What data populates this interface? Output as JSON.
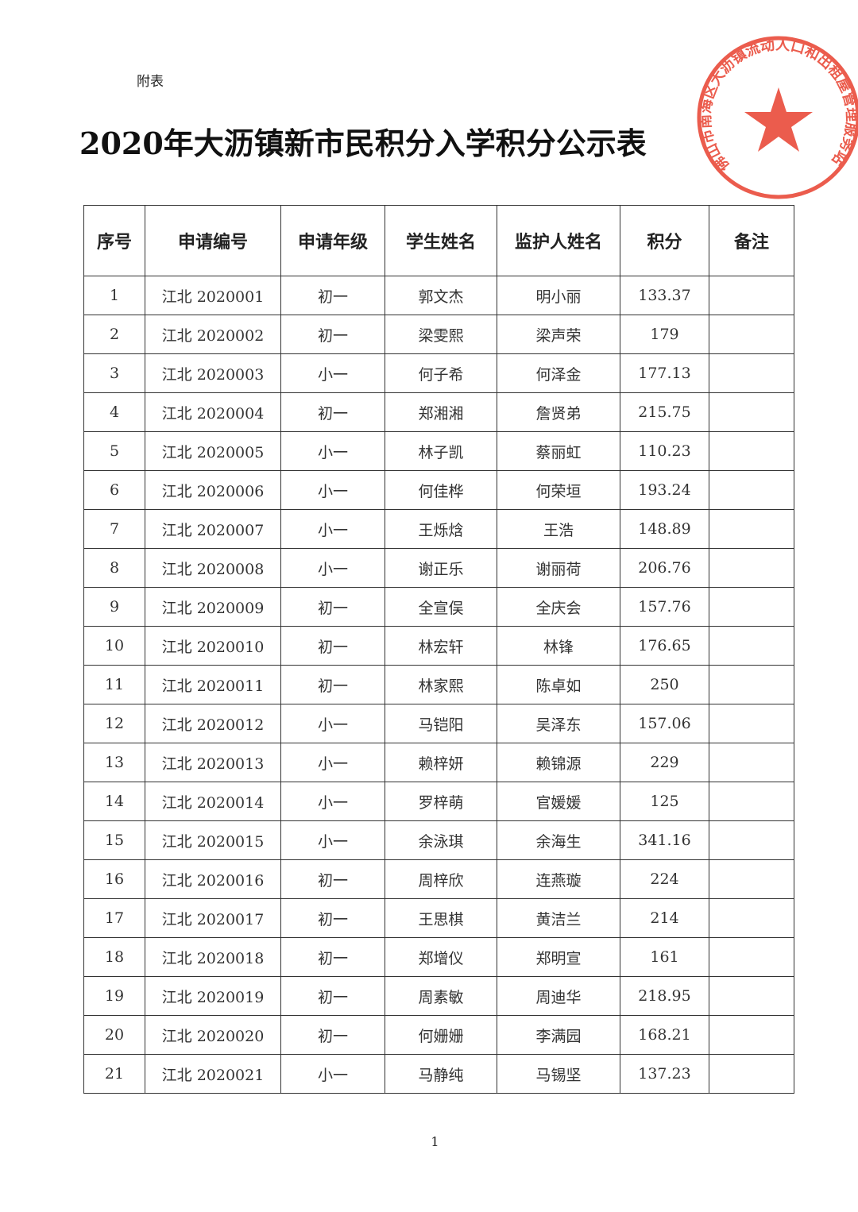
{
  "attachment_label": "附表",
  "title": "2020年大沥镇新市民积分入学积分公示表",
  "stamp": {
    "text": "佛山市南海区大沥镇流动人口和出租屋管理服务站",
    "color": "#e8402f"
  },
  "table": {
    "headers": [
      "序号",
      "申请编号",
      "申请年级",
      "学生姓名",
      "监护人姓名",
      "积分",
      "备注"
    ],
    "rows": [
      [
        "1",
        "江北 2020001",
        "初一",
        "郭文杰",
        "明小丽",
        "133.37",
        ""
      ],
      [
        "2",
        "江北 2020002",
        "初一",
        "梁雯熙",
        "梁声荣",
        "179",
        ""
      ],
      [
        "3",
        "江北 2020003",
        "小一",
        "何子希",
        "何泽金",
        "177.13",
        ""
      ],
      [
        "4",
        "江北 2020004",
        "初一",
        "郑湘湘",
        "詹贤弟",
        "215.75",
        ""
      ],
      [
        "5",
        "江北 2020005",
        "小一",
        "林子凯",
        "蔡丽虹",
        "110.23",
        ""
      ],
      [
        "6",
        "江北 2020006",
        "小一",
        "何佳桦",
        "何荣垣",
        "193.24",
        ""
      ],
      [
        "7",
        "江北 2020007",
        "小一",
        "王烁焓",
        "王浩",
        "148.89",
        ""
      ],
      [
        "8",
        "江北 2020008",
        "小一",
        "谢正乐",
        "谢丽荷",
        "206.76",
        ""
      ],
      [
        "9",
        "江北 2020009",
        "初一",
        "全宣俣",
        "全庆会",
        "157.76",
        ""
      ],
      [
        "10",
        "江北 2020010",
        "初一",
        "林宏轩",
        "林锋",
        "176.65",
        ""
      ],
      [
        "11",
        "江北 2020011",
        "初一",
        "林家熙",
        "陈卓如",
        "250",
        ""
      ],
      [
        "12",
        "江北 2020012",
        "小一",
        "马铠阳",
        "吴泽东",
        "157.06",
        ""
      ],
      [
        "13",
        "江北 2020013",
        "小一",
        "赖梓妍",
        "赖锦源",
        "229",
        ""
      ],
      [
        "14",
        "江北 2020014",
        "小一",
        "罗梓萌",
        "官媛媛",
        "125",
        ""
      ],
      [
        "15",
        "江北 2020015",
        "小一",
        "余泳琪",
        "余海生",
        "341.16",
        ""
      ],
      [
        "16",
        "江北 2020016",
        "初一",
        "周梓欣",
        "连燕璇",
        "224",
        ""
      ],
      [
        "17",
        "江北 2020017",
        "初一",
        "王思棋",
        "黄洁兰",
        "214",
        ""
      ],
      [
        "18",
        "江北 2020018",
        "初一",
        "郑增仪",
        "郑明宣",
        "161",
        ""
      ],
      [
        "19",
        "江北 2020019",
        "初一",
        "周素敏",
        "周迪华",
        "218.95",
        ""
      ],
      [
        "20",
        "江北 2020020",
        "初一",
        "何姗姗",
        "李满园",
        "168.21",
        ""
      ],
      [
        "21",
        "江北 2020021",
        "小一",
        "马静纯",
        "马锡坚",
        "137.23",
        ""
      ]
    ]
  },
  "page_number": "1"
}
